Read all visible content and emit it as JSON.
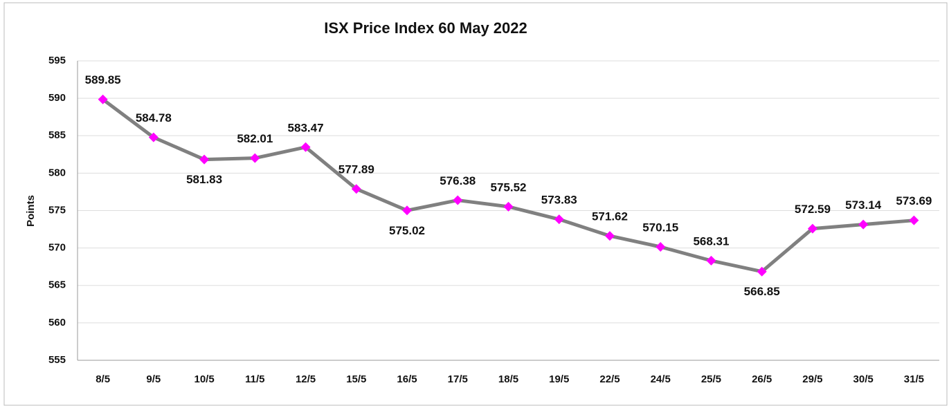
{
  "chart_data": {
    "type": "line",
    "title": "ISX Price Index 60 May 2022",
    "y_label": "Points",
    "categories": [
      "8/5",
      "9/5",
      "10/5",
      "11/5",
      "12/5",
      "15/5",
      "16/5",
      "17/5",
      "18/5",
      "19/5",
      "22/5",
      "24/5",
      "25/5",
      "26/5",
      "29/5",
      "30/5",
      "31/5"
    ],
    "series": [
      {
        "name": "ISX Price Index 60",
        "color": "#808080",
        "marker_color": "#ff00ff",
        "values": [
          589.85,
          584.78,
          581.83,
          582.01,
          583.47,
          577.89,
          575.02,
          576.38,
          575.52,
          573.83,
          571.62,
          570.15,
          568.31,
          566.85,
          572.59,
          573.14,
          573.69
        ]
      }
    ],
    "ylim": [
      555,
      595
    ],
    "yticks": [
      555,
      560,
      565,
      570,
      575,
      580,
      585,
      590,
      595
    ],
    "grid": true
  }
}
